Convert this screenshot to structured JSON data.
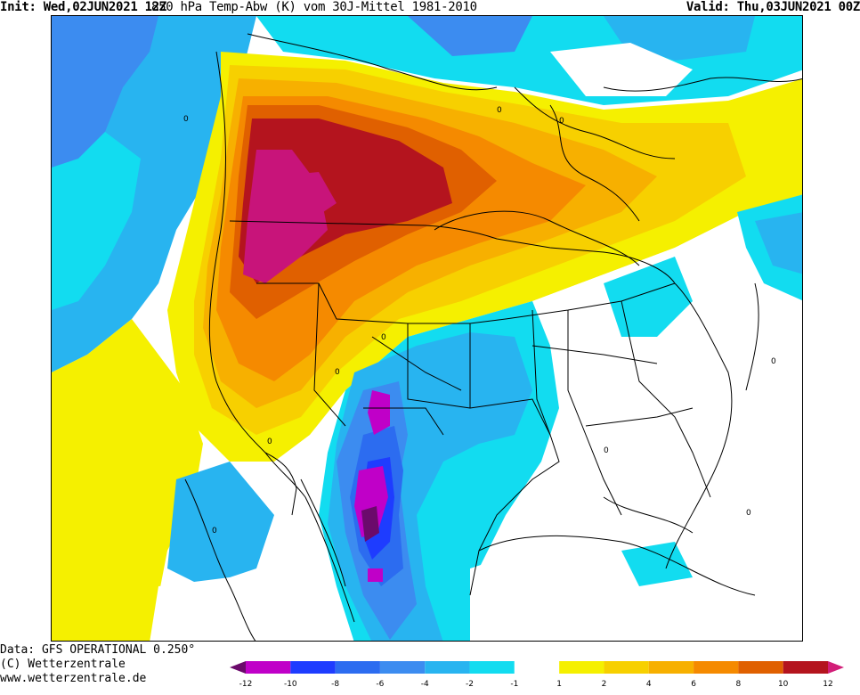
{
  "header": {
    "init": "Init: Wed,02JUN2021 12Z",
    "title": "850 hPa Temp-Abw (K) vom 30J-Mittel 1981-2010",
    "valid": "Valid: Thu,03JUN2021 00Z"
  },
  "footer": {
    "source": "Data: GFS OPERATIONAL 0.250°",
    "copyright": "(C) Wetterzentrale",
    "url": "www.wetterzentrale.de"
  },
  "legend": {
    "ticks": [
      "-12",
      "-10",
      "-8",
      "-6",
      "-4",
      "-2",
      "-1",
      "1",
      "2",
      "4",
      "6",
      "8",
      "10",
      "12"
    ],
    "colors": [
      "#6b0a6b",
      "#c000c8",
      "#1e3cff",
      "#2c6cf0",
      "#3c8cf0",
      "#28b4f0",
      "#12dcf0",
      "#ffffff",
      "#f5f000",
      "#f7d000",
      "#f7b000",
      "#f58a00",
      "#e06000",
      "#b4141e",
      "#d21e78"
    ]
  },
  "map": {
    "description_colors": {
      "extreme_warm": "#c8147a",
      "very_warm": "#b4141e",
      "warm": "#e06000",
      "mild": "#f7b000",
      "slightly": "#f5f000",
      "neutral": "#ffffff",
      "cool": "#28b4f0",
      "cold": "#3c8cf0",
      "very_cold": "#1e3cff",
      "extreme_cold": "#c000c8"
    }
  }
}
